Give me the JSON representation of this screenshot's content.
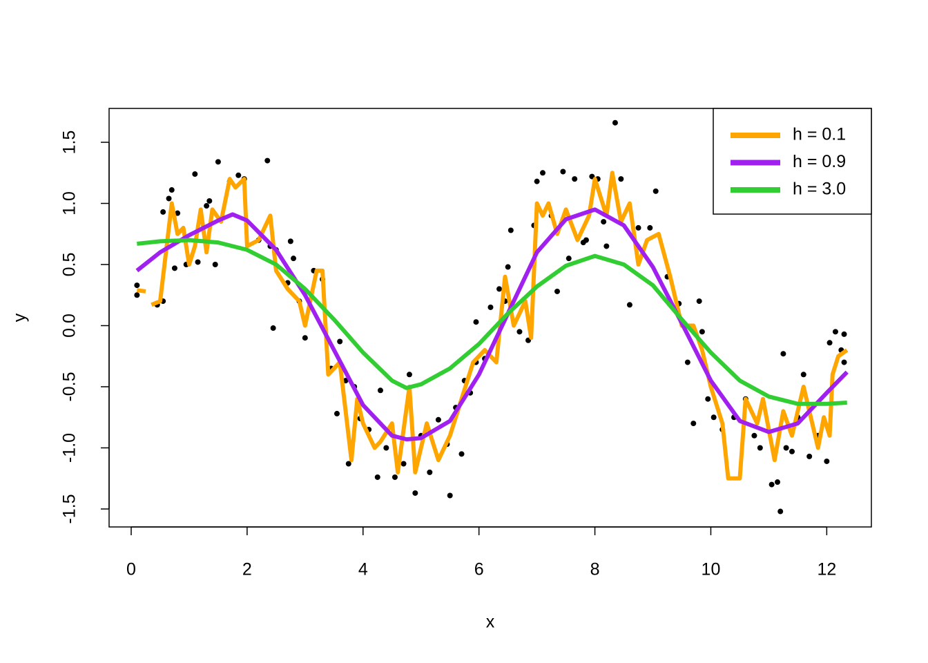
{
  "chart_data": {
    "type": "scatter",
    "xlabel": "x",
    "ylabel": "y",
    "xlim": [
      -0.381,
      12.77
    ],
    "ylim": [
      -1.647,
      1.777
    ],
    "xticks": [
      0,
      2,
      4,
      6,
      8,
      10,
      12
    ],
    "yticks": [
      -1.5,
      {
        "value": -1.0,
        "label": "-1.0"
      },
      -0.5,
      {
        "value": 0,
        "label": "0.0"
      },
      0.5,
      {
        "value": 1.0,
        "label": "1.0"
      },
      1.5
    ],
    "legend": "topright",
    "points": {
      "color": "#000000",
      "x": [
        0.1,
        0.1,
        0.45,
        0.55,
        0.55,
        0.65,
        0.7,
        0.75,
        0.8,
        0.95,
        1.1,
        1.15,
        1.3,
        1.35,
        1.45,
        1.5,
        1.7,
        1.85,
        1.95,
        2.2,
        2.35,
        2.4,
        2.45,
        2.5,
        2.7,
        2.8,
        2.75,
        2.9,
        3.0,
        3.15,
        3.3,
        3.45,
        3.55,
        3.6,
        3.7,
        3.75,
        3.85,
        3.95,
        4.1,
        4.25,
        4.3,
        4.4,
        4.55,
        4.7,
        4.8,
        4.9,
        5.0,
        5.15,
        5.3,
        5.45,
        5.5,
        5.6,
        5.7,
        5.75,
        5.85,
        5.95,
        5.95,
        6.1,
        6.2,
        6.35,
        6.45,
        6.5,
        6.55,
        6.7,
        6.85,
        6.95,
        7.0,
        7.1,
        7.25,
        7.35,
        7.45,
        7.55,
        7.65,
        7.8,
        7.85,
        7.95,
        8.05,
        8.15,
        8.2,
        8.35,
        8.45,
        8.6,
        8.75,
        8.95,
        9.05,
        9.25,
        9.45,
        9.6,
        9.7,
        9.8,
        9.85,
        9.95,
        10.05,
        10.2,
        10.4,
        10.6,
        10.75,
        10.85,
        11.05,
        11.15,
        11.2,
        11.25,
        11.3,
        11.4,
        11.5,
        11.6,
        11.7,
        11.85,
        12.0,
        12.05,
        12.15,
        12.25,
        12.3,
        12.3
      ],
      "y": [
        0.33,
        0.25,
        0.17,
        0.2,
        0.93,
        1.04,
        1.11,
        0.47,
        0.92,
        0.5,
        1.24,
        0.52,
        0.98,
        1.02,
        0.5,
        1.34,
        1.18,
        1.23,
        1.2,
        0.7,
        1.35,
        0.65,
        -0.02,
        0.62,
        0.35,
        0.55,
        0.69,
        0.2,
        -0.1,
        0.45,
        0.38,
        -0.35,
        -0.72,
        -0.13,
        -0.45,
        -1.13,
        -0.5,
        -0.76,
        -0.85,
        -1.24,
        -0.53,
        -1.0,
        -1.24,
        -1.13,
        -0.4,
        -1.37,
        -0.9,
        -1.2,
        -0.77,
        -0.97,
        -1.39,
        -0.67,
        -1.05,
        -0.45,
        -0.55,
        -0.3,
        0.03,
        -0.27,
        0.15,
        0.3,
        0.2,
        0.48,
        0.78,
        -0.05,
        -0.12,
        0.82,
        1.18,
        1.25,
        0.9,
        0.28,
        1.26,
        0.55,
        1.2,
        0.68,
        0.7,
        1.22,
        1.2,
        0.85,
        0.65,
        1.66,
        1.2,
        0.17,
        0.8,
        0.8,
        1.1,
        0.4,
        0.18,
        -0.3,
        -0.8,
        0.2,
        -0.05,
        -0.6,
        -0.75,
        -0.85,
        -0.75,
        -0.6,
        -0.9,
        -1.0,
        -1.3,
        -1.28,
        -1.52,
        -0.23,
        -1.0,
        -1.03,
        -0.75,
        -0.4,
        -1.07,
        -0.9,
        -1.11,
        -0.14,
        -0.05,
        -0.2,
        -0.3,
        -0.07
      ]
    },
    "series": [
      {
        "name": "h = 0.1",
        "color": "#FFA500",
        "x": [
          0.1,
          0.25,
          0.3,
          0.35,
          0.5,
          0.6,
          0.7,
          0.8,
          0.9,
          1.0,
          1.1,
          1.2,
          1.3,
          1.4,
          1.55,
          1.7,
          1.8,
          1.95,
          2.0,
          2.2,
          2.4,
          2.5,
          2.7,
          2.9,
          3.0,
          3.2,
          3.3,
          3.4,
          3.6,
          3.8,
          3.9,
          4.0,
          4.2,
          4.3,
          4.5,
          4.6,
          4.8,
          4.9,
          5.1,
          5.3,
          5.5,
          5.7,
          5.9,
          6.1,
          6.3,
          6.45,
          6.6,
          6.8,
          6.9,
          7.0,
          7.1,
          7.2,
          7.35,
          7.5,
          7.7,
          7.9,
          8.0,
          8.2,
          8.3,
          8.45,
          8.6,
          8.75,
          8.9,
          9.1,
          9.3,
          9.5,
          9.7,
          9.85,
          10.0,
          10.2,
          10.3,
          10.5,
          10.6,
          10.8,
          10.9,
          11.1,
          11.25,
          11.4,
          11.6,
          11.75,
          11.85,
          11.95,
          12.05,
          12.1,
          12.2,
          12.35
        ],
        "values": [
          0.29,
          0.28,
          null,
          0.17,
          0.2,
          0.6,
          1.0,
          0.75,
          0.8,
          0.5,
          0.65,
          0.95,
          0.6,
          0.95,
          0.85,
          1.2,
          1.13,
          1.2,
          0.65,
          0.7,
          0.9,
          0.45,
          0.3,
          0.2,
          0.0,
          0.45,
          0.45,
          -0.4,
          -0.3,
          -1.1,
          -0.6,
          -0.8,
          -1.0,
          -0.95,
          -0.8,
          -1.2,
          -0.5,
          -1.2,
          -0.8,
          -1.1,
          -0.9,
          -0.6,
          -0.3,
          -0.2,
          -0.3,
          0.4,
          0.0,
          0.2,
          -0.1,
          1.0,
          0.9,
          1.0,
          0.75,
          0.95,
          0.7,
          0.9,
          1.2,
          0.9,
          1.25,
          0.85,
          1.0,
          0.5,
          0.7,
          0.75,
          0.4,
          0.0,
          0.0,
          -0.2,
          -0.5,
          -0.8,
          -1.25,
          -1.25,
          -0.6,
          -0.8,
          -0.6,
          -1.1,
          -0.7,
          -0.9,
          -0.5,
          -0.8,
          -1.0,
          -0.75,
          -0.9,
          -0.4,
          -0.25,
          -0.2
        ]
      },
      {
        "name": "h = 0.9",
        "color": "#A020F0",
        "x": [
          0.1,
          0.5,
          1.0,
          1.5,
          1.75,
          2.0,
          2.5,
          3.0,
          3.5,
          4.0,
          4.5,
          4.75,
          5.0,
          5.5,
          6.0,
          6.5,
          7.0,
          7.5,
          8.0,
          8.5,
          9.0,
          9.5,
          10.0,
          10.5,
          11.0,
          11.5,
          12.0,
          12.35
        ],
        "values": [
          0.45,
          0.6,
          0.74,
          0.86,
          0.91,
          0.86,
          0.62,
          0.25,
          -0.2,
          -0.65,
          -0.9,
          -0.93,
          -0.92,
          -0.78,
          -0.4,
          0.1,
          0.6,
          0.87,
          0.95,
          0.82,
          0.48,
          0.02,
          -0.45,
          -0.78,
          -0.87,
          -0.8,
          -0.55,
          -0.38
        ]
      },
      {
        "name": "h = 3.0",
        "color": "#32CD32",
        "x": [
          0.1,
          0.5,
          1.0,
          1.5,
          2.0,
          2.5,
          3.0,
          3.5,
          4.0,
          4.5,
          4.75,
          5.0,
          5.5,
          6.0,
          6.5,
          7.0,
          7.5,
          8.0,
          8.5,
          9.0,
          9.5,
          10.0,
          10.5,
          11.0,
          11.5,
          12.0,
          12.35
        ],
        "values": [
          0.67,
          0.69,
          0.7,
          0.68,
          0.62,
          0.5,
          0.3,
          0.05,
          -0.22,
          -0.45,
          -0.51,
          -0.48,
          -0.35,
          -0.15,
          0.1,
          0.32,
          0.49,
          0.57,
          0.5,
          0.33,
          0.05,
          -0.22,
          -0.45,
          -0.58,
          -0.64,
          -0.64,
          -0.63
        ]
      }
    ]
  }
}
